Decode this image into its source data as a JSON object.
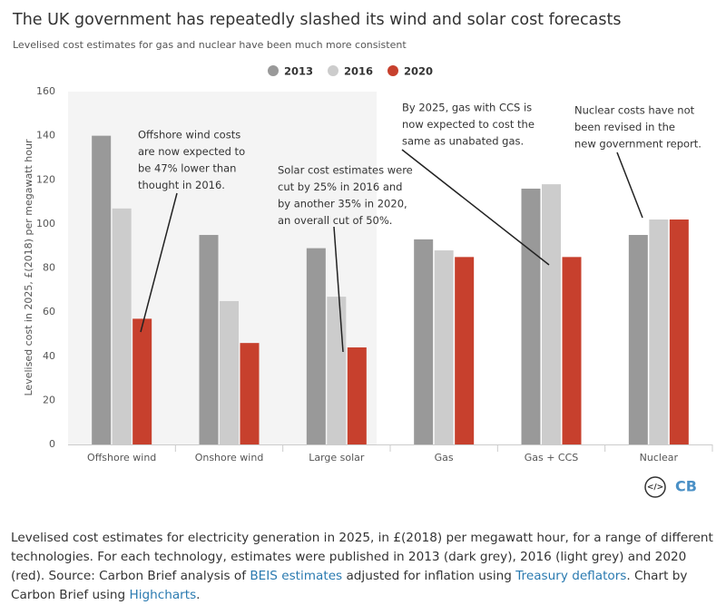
{
  "chart_data": {
    "type": "bar",
    "title": "The UK government has repeatedly slashed its wind and solar cost forecasts",
    "subtitle": "Levelised cost estimates for gas and nuclear have been much more consistent",
    "y_label": "Levelised cost in 2025, £(2018) per megawatt hour",
    "categories": [
      "Offshore wind",
      "Onshore wind",
      "Large solar",
      "Gas",
      "Gas + CCS",
      "Nuclear"
    ],
    "series": [
      {
        "name": "2013",
        "color": "#999999",
        "values": [
          140,
          95,
          89,
          93,
          116,
          95
        ]
      },
      {
        "name": "2016",
        "color": "#cccccc",
        "values": [
          107,
          65,
          67,
          88,
          118,
          102
        ]
      },
      {
        "name": "2020",
        "color": "#c7402d",
        "values": [
          57,
          46,
          44,
          85,
          85,
          102
        ]
      }
    ],
    "ylim": [
      0,
      160
    ],
    "yticks": [
      0,
      20,
      40,
      60,
      80,
      100,
      120,
      140,
      160
    ],
    "grid": false,
    "legend": "top",
    "annotations": [
      [
        "Offshore wind costs",
        "are now expected to",
        "be 47% lower than",
        "thought in 2016."
      ],
      [
        "Solar cost estimates were",
        "cut by 25% in 2016 and",
        "by another 35% in 2020,",
        "an overall cut of 50%."
      ],
      [
        "By 2025, gas with CCS is",
        "now expected to cost the",
        "same as unabated gas."
      ],
      [
        "Nuclear costs have not",
        "been revised in the",
        "new government report."
      ]
    ]
  },
  "logo": "CB",
  "caption": [
    "Levelised cost estimates for electricity generation in 2025, in £(2018) per megawatt hour, for a range of different technologies. For each technology, estimates were published in 2013 (dark grey), 2016 (light grey) and 2020 (red). Source: Carbon Brief analysis of ",
    "BEIS estimates",
    " adjusted for inflation using ",
    "Treasury deflators",
    ". Chart by Carbon Brief using ",
    "Highcharts",
    "."
  ]
}
